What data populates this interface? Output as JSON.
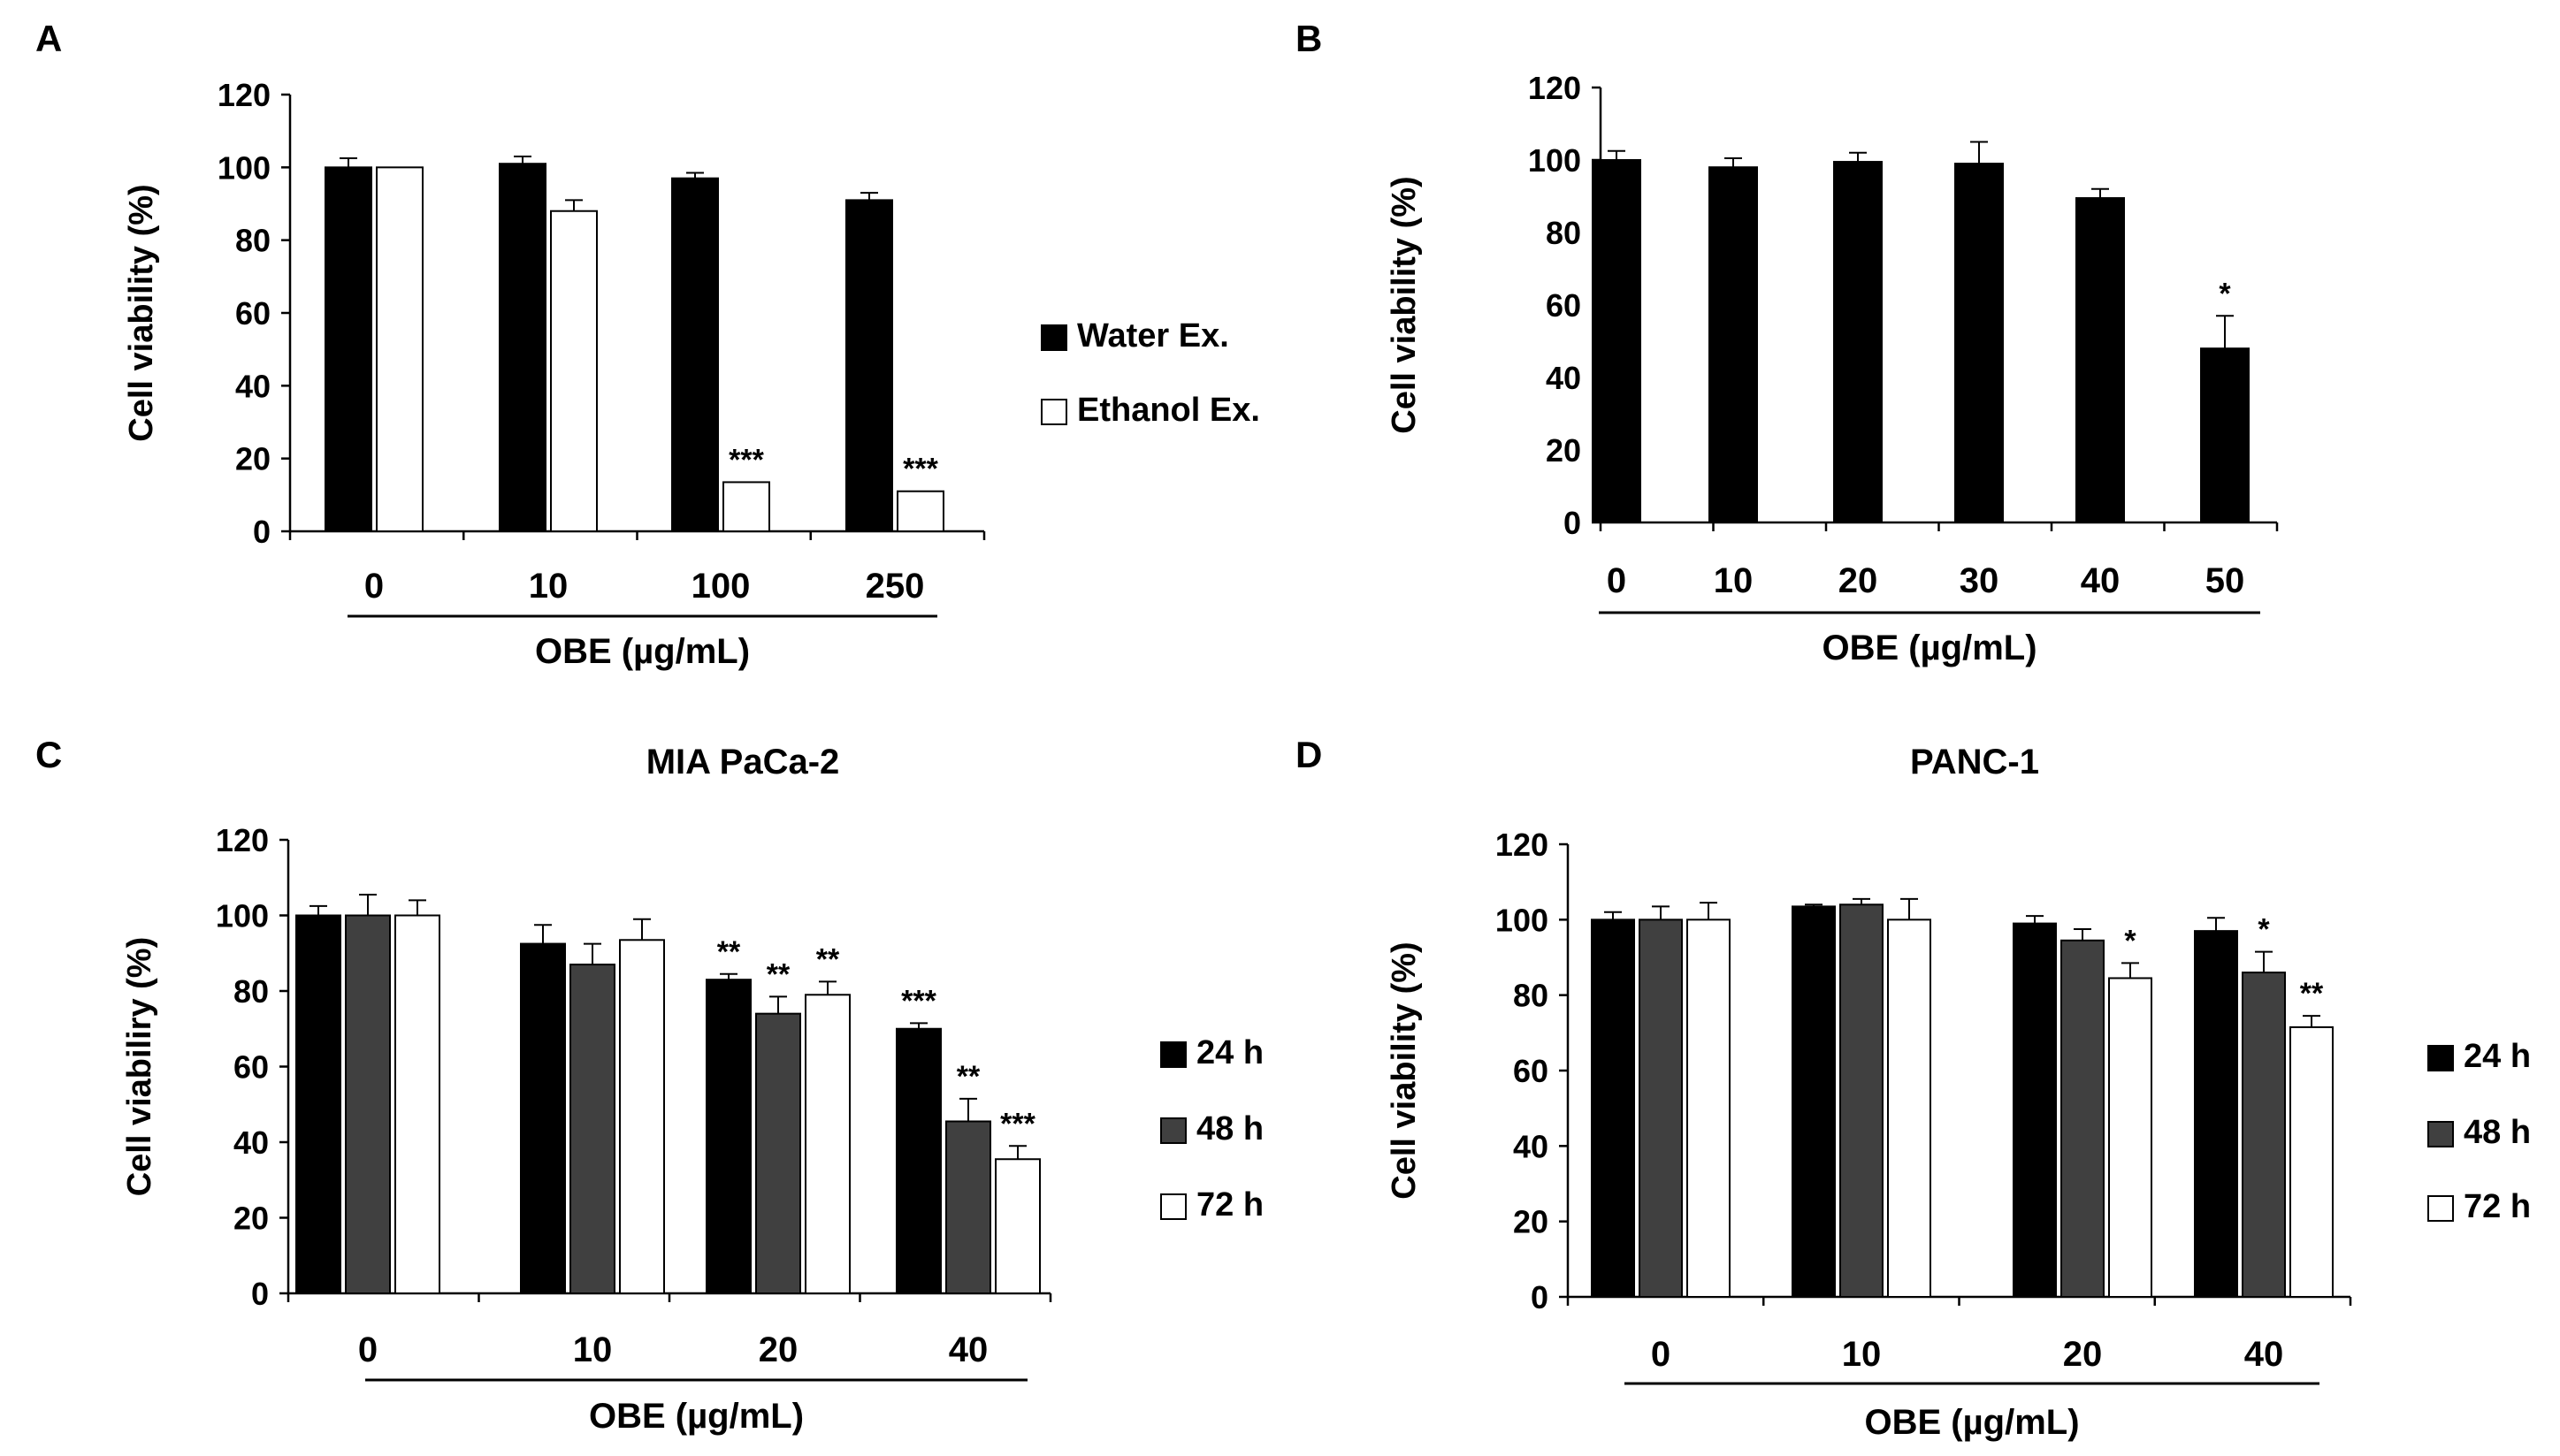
{
  "colors": {
    "black": "#000000",
    "dark_gray": "#404040",
    "white": "#ffffff"
  },
  "chart_data": [
    {
      "id": "A",
      "panel_label": "A",
      "type": "bar",
      "title": "",
      "ylabel": "Cell viability (%)",
      "xlabel": "OBE (µg/mL)",
      "ylim": [
        0,
        120
      ],
      "yticks": [
        "0",
        "20",
        "40",
        "60",
        "80",
        "100",
        "120"
      ],
      "categories": [
        "0",
        "10",
        "100",
        "250"
      ],
      "legend": {
        "placement": "right"
      },
      "series": [
        {
          "name": "Water Ex.",
          "legend_label": "Water Ex.",
          "fill": "#000000",
          "values": [
            100,
            101,
            97,
            91
          ],
          "errors": [
            2.5,
            2,
            1.5,
            2
          ],
          "stars": [
            "",
            "",
            "",
            ""
          ]
        },
        {
          "name": "Ethanol Ex.",
          "legend_label": "Ethanol Ex.",
          "fill": "#ffffff",
          "values": [
            100,
            88,
            13.5,
            11
          ],
          "errors": [
            0,
            3,
            0,
            0
          ],
          "stars": [
            "",
            "",
            "***",
            "***"
          ]
        }
      ]
    },
    {
      "id": "B",
      "panel_label": "B",
      "type": "bar",
      "title": "",
      "ylabel": "Cell viability (%)",
      "xlabel": "OBE (µg/mL)",
      "ylim": [
        0,
        120
      ],
      "yticks": [
        "0",
        "20",
        "40",
        "60",
        "80",
        "100",
        "120"
      ],
      "categories": [
        "0",
        "10",
        "20",
        "30",
        "40",
        "50"
      ],
      "legend": null,
      "series": [
        {
          "name": "OBE",
          "legend_label": "",
          "fill": "#000000",
          "values": [
            100,
            98,
            99.5,
            99,
            89.5,
            48
          ],
          "errors": [
            2.5,
            2.5,
            2.5,
            6,
            2.5,
            9
          ],
          "stars": [
            "",
            "",
            "",
            "",
            "",
            "*"
          ]
        }
      ]
    },
    {
      "id": "C",
      "panel_label": "C",
      "type": "bar",
      "title": "MIA PaCa-2",
      "ylabel": "Cell viabiliry (%)",
      "xlabel": "OBE (µg/mL)",
      "ylim": [
        0,
        120
      ],
      "yticks": [
        "0",
        "20",
        "40",
        "60",
        "80",
        "100",
        "120"
      ],
      "categories": [
        "0",
        "10",
        "20",
        "40"
      ],
      "legend": {
        "placement": "right"
      },
      "series": [
        {
          "name": "24 h",
          "legend_label": "24 h",
          "fill": "#000000",
          "values": [
            100,
            92.5,
            83,
            70
          ],
          "errors": [
            2.5,
            5,
            1.5,
            1.5
          ],
          "stars": [
            "",
            "",
            "**",
            "***"
          ]
        },
        {
          "name": "48 h",
          "legend_label": "48 h",
          "fill": "#404040",
          "values": [
            100,
            87,
            74,
            45.5
          ],
          "errors": [
            5.5,
            5.5,
            4.5,
            6
          ],
          "stars": [
            "",
            "",
            "**",
            "**"
          ]
        },
        {
          "name": "72 h",
          "legend_label": "72 h",
          "fill": "#ffffff",
          "values": [
            100,
            93.5,
            79,
            35.5
          ],
          "errors": [
            4,
            5.5,
            3.5,
            3.5
          ],
          "stars": [
            "",
            "",
            "**",
            "***"
          ]
        }
      ]
    },
    {
      "id": "D",
      "panel_label": "D",
      "type": "bar",
      "title": "PANC-1",
      "ylabel": "Cell viability (%)",
      "xlabel": "OBE (µg/mL)",
      "ylim": [
        0,
        120
      ],
      "yticks": [
        "0",
        "20",
        "40",
        "60",
        "80",
        "100",
        "120"
      ],
      "categories": [
        "0",
        "10",
        "20",
        "40"
      ],
      "legend": {
        "placement": "right"
      },
      "series": [
        {
          "name": "24 h",
          "legend_label": "24 h",
          "fill": "#000000",
          "values": [
            100,
            103.5,
            99,
            97
          ],
          "errors": [
            2,
            0.5,
            2,
            3.5
          ],
          "stars": [
            "",
            "",
            "",
            ""
          ]
        },
        {
          "name": "48 h",
          "legend_label": "48 h",
          "fill": "#404040",
          "values": [
            100,
            104,
            94.5,
            86
          ],
          "errors": [
            3.5,
            1.5,
            3,
            5.5
          ],
          "stars": [
            "",
            "",
            "",
            "*"
          ]
        },
        {
          "name": "72 h",
          "legend_label": "72 h",
          "fill": "#ffffff",
          "values": [
            100,
            100,
            84.5,
            71.5
          ],
          "errors": [
            4.5,
            5.5,
            4,
            3
          ],
          "stars": [
            "",
            "",
            "*",
            "**"
          ]
        }
      ]
    }
  ]
}
